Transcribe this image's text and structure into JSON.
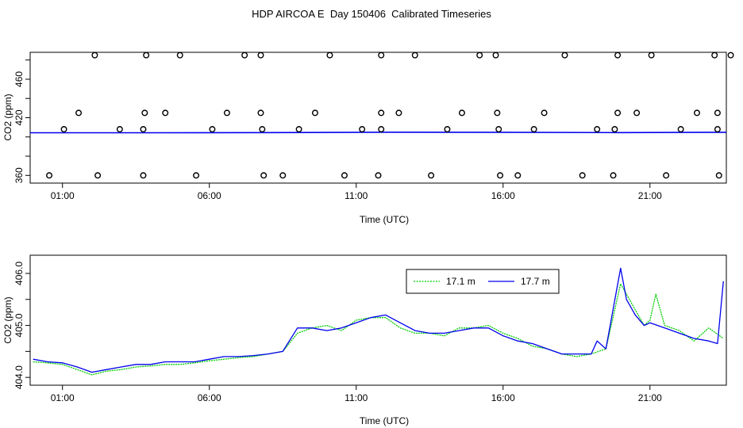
{
  "title": "HDP AIRCOA E  Day 150406  Calibrated Timeseries",
  "colors": {
    "green": "#00cc00",
    "blue": "#0000ee",
    "axis": "#000000"
  },
  "chart_data": [
    {
      "type": "scatter",
      "xlabel": "Time (UTC)",
      "ylabel": "CO2 (ppm)",
      "x_ticks": [
        1,
        6,
        11,
        16,
        21
      ],
      "x_tick_labels": [
        "01:00",
        "06:00",
        "11:00",
        "16:00",
        "21:00"
      ],
      "xlim": [
        -0.1,
        23.6
      ],
      "y_ticks": [
        360,
        420,
        460
      ],
      "y_tick_labels": [
        "360",
        "420",
        "460"
      ],
      "ylim": [
        352,
        488
      ],
      "grid": false,
      "points": [
        {
          "x": 0.55,
          "y": 360
        },
        {
          "x": 2.2,
          "y": 360
        },
        {
          "x": 3.75,
          "y": 360
        },
        {
          "x": 5.55,
          "y": 360
        },
        {
          "x": 7.85,
          "y": 360
        },
        {
          "x": 8.5,
          "y": 360
        },
        {
          "x": 10.6,
          "y": 360
        },
        {
          "x": 11.75,
          "y": 360
        },
        {
          "x": 13.55,
          "y": 360
        },
        {
          "x": 15.9,
          "y": 360
        },
        {
          "x": 16.5,
          "y": 360
        },
        {
          "x": 18.7,
          "y": 360
        },
        {
          "x": 19.75,
          "y": 360
        },
        {
          "x": 21.55,
          "y": 360
        },
        {
          "x": 23.35,
          "y": 360
        },
        {
          "x": 1.05,
          "y": 408
        },
        {
          "x": 2.95,
          "y": 408
        },
        {
          "x": 3.75,
          "y": 408
        },
        {
          "x": 6.1,
          "y": 408
        },
        {
          "x": 7.8,
          "y": 408
        },
        {
          "x": 9.05,
          "y": 408
        },
        {
          "x": 11.2,
          "y": 408
        },
        {
          "x": 11.85,
          "y": 408
        },
        {
          "x": 14.1,
          "y": 408
        },
        {
          "x": 15.85,
          "y": 408
        },
        {
          "x": 17.05,
          "y": 408
        },
        {
          "x": 19.2,
          "y": 408
        },
        {
          "x": 19.8,
          "y": 408
        },
        {
          "x": 22.05,
          "y": 408
        },
        {
          "x": 23.3,
          "y": 408
        },
        {
          "x": 1.55,
          "y": 425
        },
        {
          "x": 3.8,
          "y": 425
        },
        {
          "x": 4.5,
          "y": 425
        },
        {
          "x": 6.6,
          "y": 425
        },
        {
          "x": 7.75,
          "y": 425
        },
        {
          "x": 9.6,
          "y": 425
        },
        {
          "x": 11.85,
          "y": 425
        },
        {
          "x": 12.45,
          "y": 425
        },
        {
          "x": 14.6,
          "y": 425
        },
        {
          "x": 15.8,
          "y": 425
        },
        {
          "x": 17.4,
          "y": 425
        },
        {
          "x": 19.9,
          "y": 425
        },
        {
          "x": 20.55,
          "y": 425
        },
        {
          "x": 22.6,
          "y": 425
        },
        {
          "x": 23.3,
          "y": 425
        },
        {
          "x": 2.1,
          "y": 485
        },
        {
          "x": 3.85,
          "y": 485
        },
        {
          "x": 5.0,
          "y": 485
        },
        {
          "x": 7.2,
          "y": 485
        },
        {
          "x": 7.75,
          "y": 485
        },
        {
          "x": 10.1,
          "y": 485
        },
        {
          "x": 11.85,
          "y": 485
        },
        {
          "x": 13.0,
          "y": 485
        },
        {
          "x": 15.2,
          "y": 485
        },
        {
          "x": 15.75,
          "y": 485
        },
        {
          "x": 18.1,
          "y": 485
        },
        {
          "x": 19.9,
          "y": 485
        },
        {
          "x": 21.05,
          "y": 485
        },
        {
          "x": 23.2,
          "y": 485
        },
        {
          "x": 23.75,
          "y": 485
        }
      ],
      "series": [
        {
          "color": "#0000ee",
          "x": [
            -0.1,
            4,
            8,
            12,
            16,
            20,
            23.6
          ],
          "values": [
            404.3,
            404.3,
            404.5,
            404.9,
            404.8,
            404.5,
            404.8
          ]
        }
      ]
    },
    {
      "type": "line",
      "xlabel": "Time (UTC)",
      "ylabel": "CO2 (ppm)",
      "x_ticks": [
        1,
        6,
        11,
        16,
        21
      ],
      "x_tick_labels": [
        "01:00",
        "06:00",
        "11:00",
        "16:00",
        "21:00"
      ],
      "xlim": [
        -0.1,
        23.6
      ],
      "y_ticks": [
        404.0,
        404.5,
        405.0,
        405.5,
        406.0
      ],
      "y_tick_labels": [
        "404.0",
        "",
        "405.0",
        "",
        "406.0"
      ],
      "ylim": [
        403.85,
        406.35
      ],
      "grid": false,
      "legend_position": "top-right",
      "series": [
        {
          "name": "17.1 m",
          "color": "#00cc00",
          "x": [
            0,
            0.5,
            1,
            1.5,
            2,
            2.5,
            3,
            3.5,
            4,
            4.5,
            5,
            5.5,
            6,
            6.5,
            7,
            7.5,
            8,
            8.5,
            9,
            9.5,
            10,
            10.5,
            11,
            11.5,
            12,
            12.5,
            13,
            13.5,
            14,
            14.5,
            15,
            15.5,
            16,
            16.5,
            17,
            17.5,
            18,
            18.5,
            19,
            19.5,
            20,
            20.2,
            20.5,
            20.8,
            21,
            21.2,
            21.5,
            22,
            22.5,
            23,
            23.5
          ],
          "values": [
            404.3,
            404.28,
            404.25,
            404.15,
            404.05,
            404.12,
            404.15,
            404.2,
            404.22,
            404.25,
            404.25,
            404.28,
            404.32,
            404.35,
            404.38,
            404.4,
            404.45,
            404.5,
            404.85,
            404.95,
            405.0,
            404.9,
            405.1,
            405.15,
            405.15,
            404.95,
            404.85,
            404.85,
            404.8,
            404.95,
            404.95,
            405.0,
            404.85,
            404.75,
            404.6,
            404.55,
            404.45,
            404.4,
            404.45,
            404.55,
            405.8,
            405.6,
            405.3,
            405.0,
            405.1,
            405.6,
            405.0,
            404.9,
            404.7,
            404.95,
            404.75
          ]
        },
        {
          "name": "17.7 m",
          "color": "#0000ee",
          "x": [
            0,
            0.5,
            1,
            1.5,
            2,
            2.5,
            3,
            3.5,
            4,
            4.5,
            5,
            5.5,
            6,
            6.5,
            7,
            7.5,
            8,
            8.5,
            9,
            9.5,
            10,
            10.5,
            11,
            11.5,
            12,
            12.5,
            13,
            13.5,
            14,
            14.5,
            15,
            15.5,
            16,
            16.5,
            17,
            17.5,
            18,
            18.5,
            19,
            19.2,
            19.5,
            20,
            20.2,
            20.5,
            20.8,
            21,
            21.5,
            22,
            22.5,
            23,
            23.3,
            23.5
          ],
          "values": [
            404.35,
            404.3,
            404.28,
            404.2,
            404.1,
            404.15,
            404.2,
            404.25,
            404.25,
            404.3,
            404.3,
            404.3,
            404.35,
            404.4,
            404.4,
            404.42,
            404.45,
            404.5,
            404.95,
            404.95,
            404.9,
            404.95,
            405.05,
            405.15,
            405.2,
            405.05,
            404.9,
            404.85,
            404.85,
            404.9,
            404.95,
            404.95,
            404.8,
            404.7,
            404.65,
            404.55,
            404.45,
            404.45,
            404.45,
            404.7,
            404.55,
            406.1,
            405.5,
            405.2,
            405.0,
            405.05,
            404.95,
            404.85,
            404.75,
            404.7,
            404.65,
            405.85
          ]
        }
      ]
    }
  ]
}
